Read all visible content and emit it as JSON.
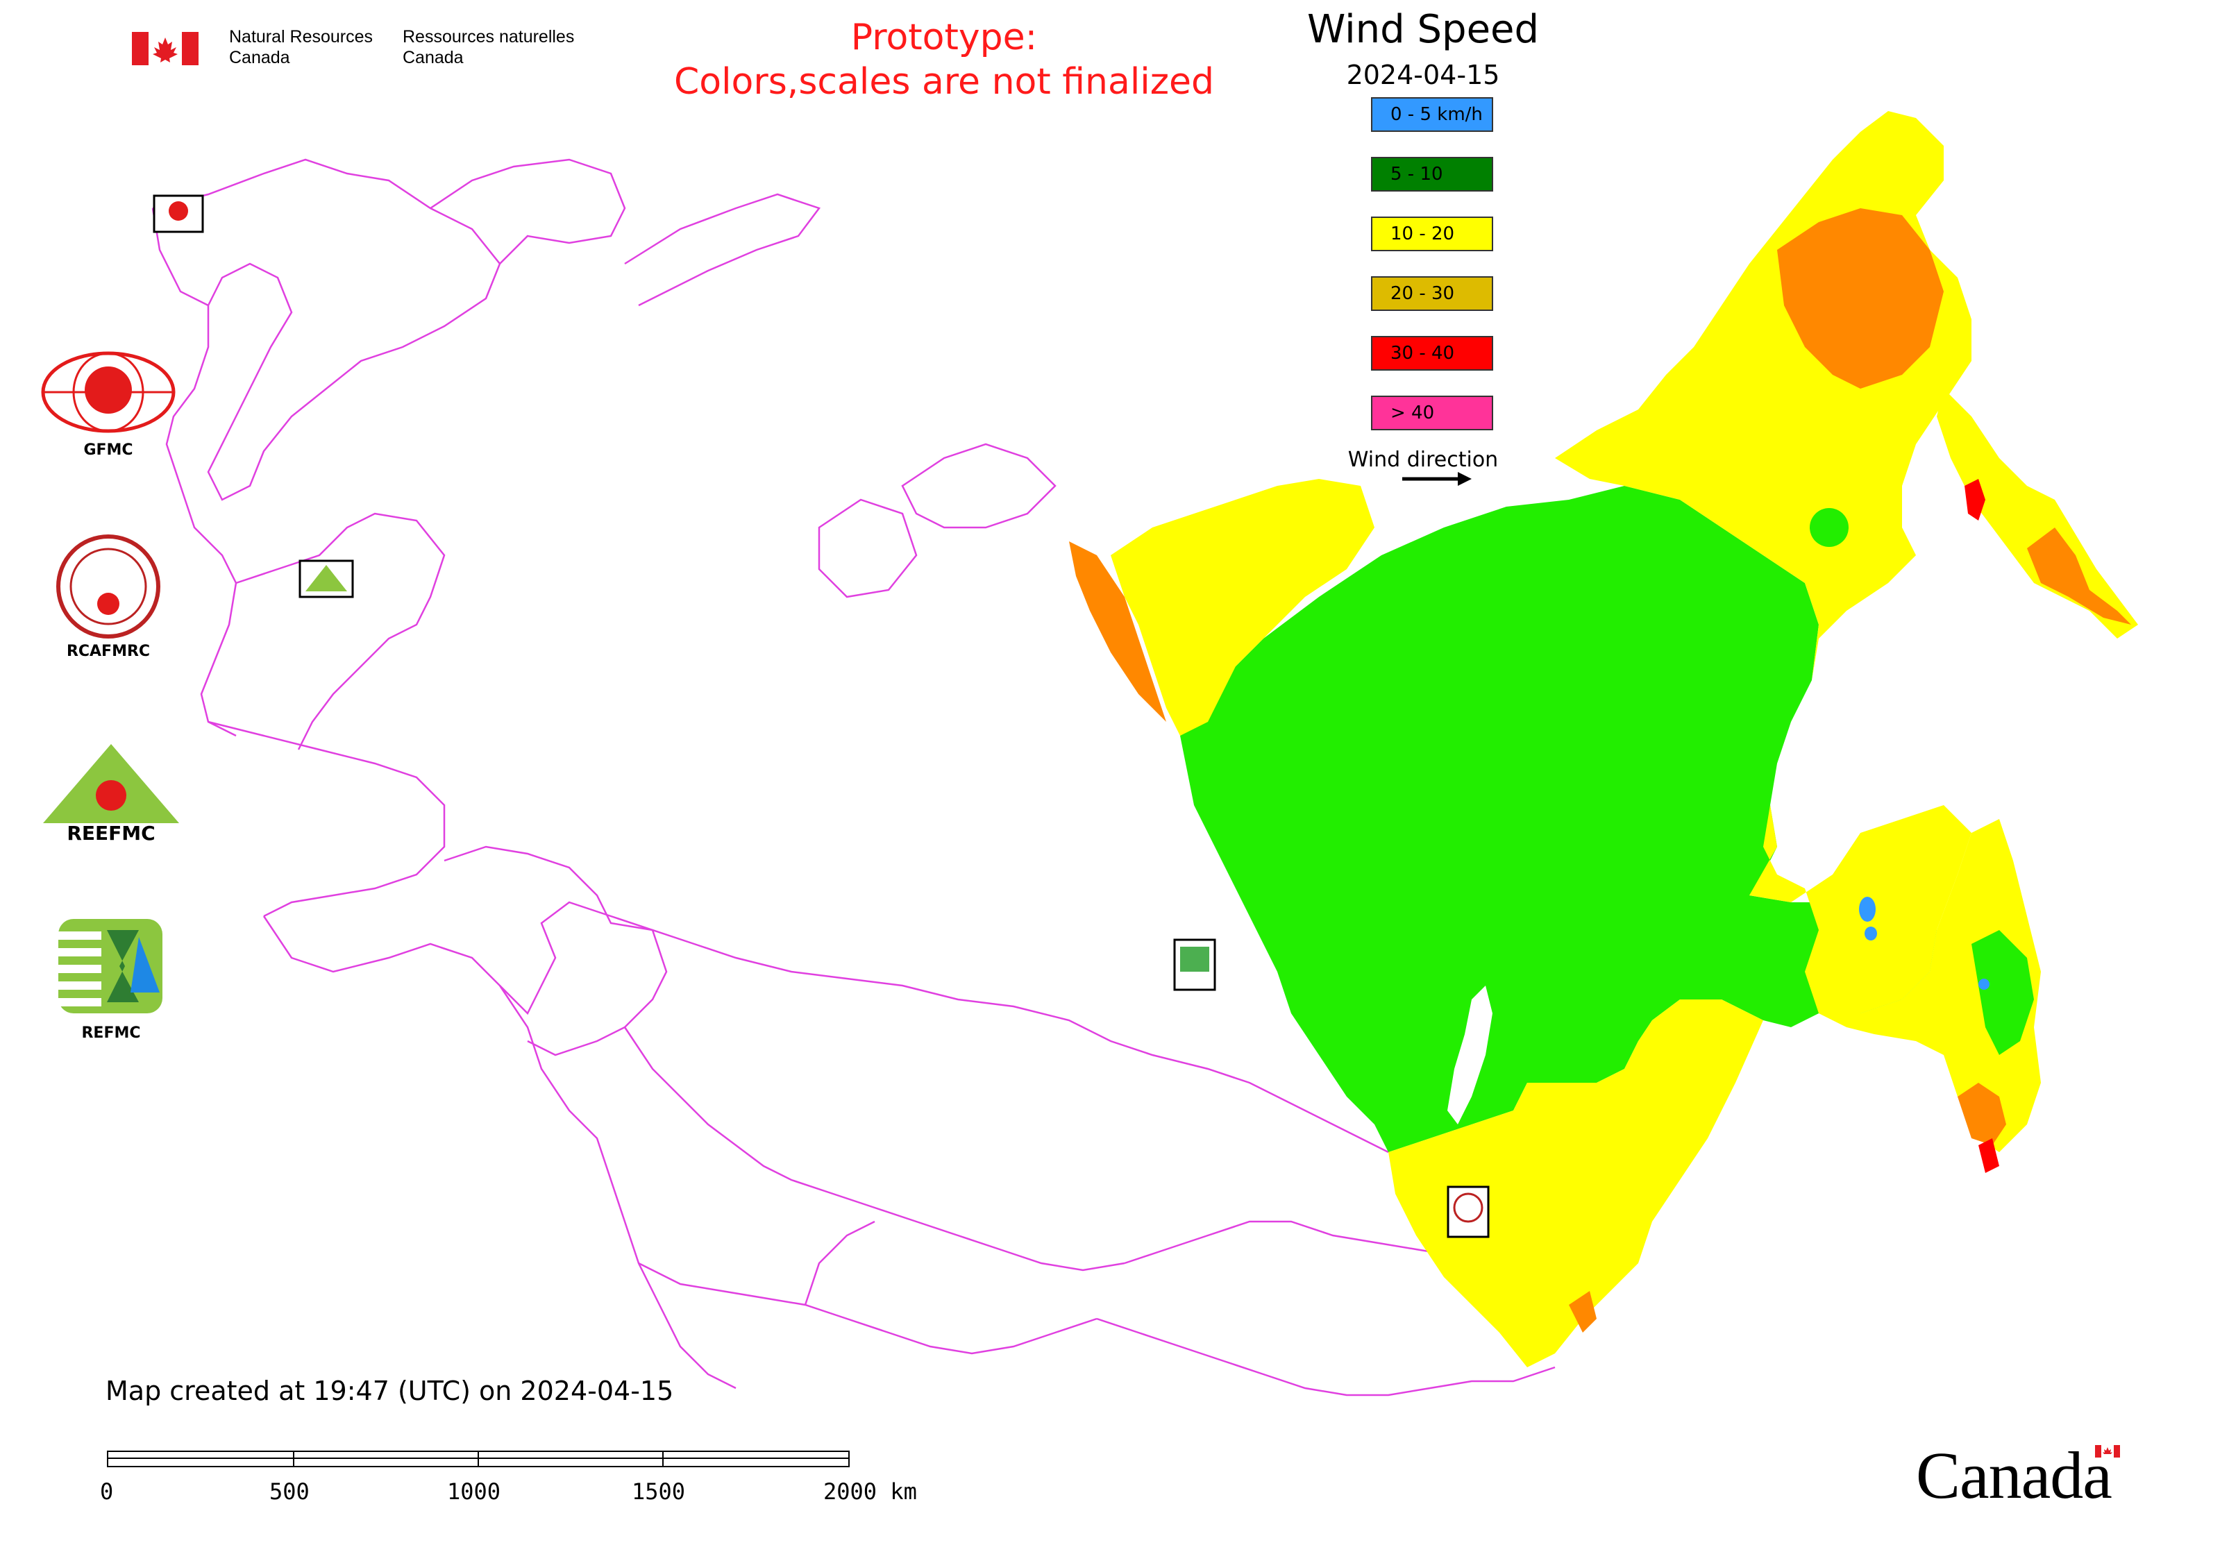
{
  "header": {
    "department_en": "Natural Resources Canada",
    "department_fr": "Ressources naturelles Canada"
  },
  "notice": {
    "line1": "Prototype:",
    "line2": "Colors,scales are not finalized"
  },
  "legend": {
    "title": "Wind Speed",
    "date": "2024-04-15",
    "classes": [
      {
        "label": "0 - 5 km/h",
        "color": "#3399ff"
      },
      {
        "label": "5 - 10",
        "color": "#008000"
      },
      {
        "label": "10 - 20",
        "color": "#ffff00"
      },
      {
        "label": "20 - 30",
        "color": "#ddbb00"
      },
      {
        "label": "30 - 40",
        "color": "#ff0000"
      },
      {
        "label": "> 40",
        "color": "#ff3399"
      }
    ],
    "wind_direction_label": "Wind direction"
  },
  "palette": {
    "border": "#e040e0",
    "green": "#22ee00",
    "yellow": "#ffff00",
    "orange": "#ff8800",
    "red": "#ff0000",
    "blue": "#3399ff"
  },
  "logos": {
    "gfmc": "GFMC",
    "rcafmrc": "RCAFMRC",
    "reefmc_mark": "REEFMC",
    "refmc": "REFMC"
  },
  "credit": "Map created at 19:47 (UTC) on 2024-04-15",
  "scale": {
    "unit": "km",
    "ticks": [
      "0",
      "500",
      "1000",
      "1500",
      "2000 km"
    ]
  },
  "wordmark": "Canada"
}
